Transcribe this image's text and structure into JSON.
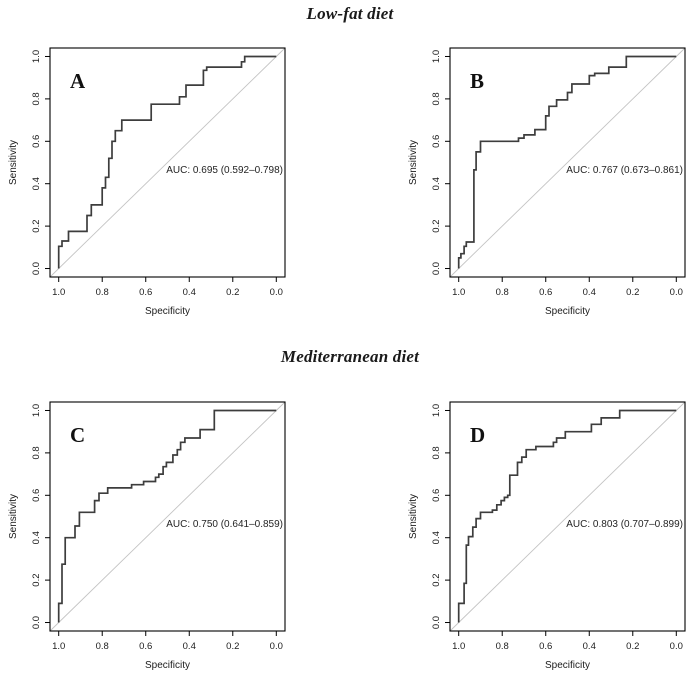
{
  "figure": {
    "sections": [
      {
        "title": "Low-fat diet",
        "panels": [
          "A",
          "B"
        ]
      },
      {
        "title": "Mediterranean diet",
        "panels": [
          "C",
          "D"
        ]
      }
    ],
    "colors": {
      "curve": "#3d3d3d",
      "diagonal": "#c4c4c4",
      "axis": "#000000",
      "text": "#1c1c1c"
    }
  },
  "chart_data": [
    {
      "type": "line",
      "panel": "A",
      "section_title": "Low-fat diet",
      "xlabel": "Specificity",
      "ylabel": "Sensitivity",
      "x_ticks": [
        1.0,
        0.8,
        0.6,
        0.4,
        0.2,
        0.0
      ],
      "y_ticks": [
        0.0,
        0.2,
        0.4,
        0.6,
        0.8,
        1.0
      ],
      "x_axis_reversed": true,
      "xlim": [
        1.0,
        0.0
      ],
      "ylim": [
        0.0,
        1.0
      ],
      "auc": 0.695,
      "auc_ci": [
        0.592,
        0.798
      ],
      "auc_label": "AUC: 0.695 (0.592–0.798)",
      "diagonal_reference": true,
      "roc_points": [
        [
          1.0,
          0.0
        ],
        [
          1.0,
          0.105
        ],
        [
          0.985,
          0.105
        ],
        [
          0.985,
          0.13
        ],
        [
          0.955,
          0.13
        ],
        [
          0.955,
          0.175
        ],
        [
          0.87,
          0.175
        ],
        [
          0.87,
          0.25
        ],
        [
          0.85,
          0.25
        ],
        [
          0.85,
          0.3
        ],
        [
          0.8,
          0.3
        ],
        [
          0.8,
          0.38
        ],
        [
          0.785,
          0.38
        ],
        [
          0.785,
          0.43
        ],
        [
          0.77,
          0.43
        ],
        [
          0.77,
          0.52
        ],
        [
          0.755,
          0.52
        ],
        [
          0.755,
          0.6
        ],
        [
          0.74,
          0.6
        ],
        [
          0.74,
          0.65
        ],
        [
          0.71,
          0.65
        ],
        [
          0.71,
          0.7
        ],
        [
          0.575,
          0.7
        ],
        [
          0.575,
          0.775
        ],
        [
          0.445,
          0.775
        ],
        [
          0.445,
          0.81
        ],
        [
          0.415,
          0.81
        ],
        [
          0.415,
          0.865
        ],
        [
          0.335,
          0.865
        ],
        [
          0.335,
          0.935
        ],
        [
          0.32,
          0.935
        ],
        [
          0.32,
          0.95
        ],
        [
          0.16,
          0.95
        ],
        [
          0.16,
          0.975
        ],
        [
          0.145,
          0.975
        ],
        [
          0.145,
          1.0
        ],
        [
          0.0,
          1.0
        ]
      ]
    },
    {
      "type": "line",
      "panel": "B",
      "section_title": "Low-fat diet",
      "xlabel": "Specificity",
      "ylabel": "Sensitivity",
      "x_ticks": [
        1.0,
        0.8,
        0.6,
        0.4,
        0.2,
        0.0
      ],
      "y_ticks": [
        0.0,
        0.2,
        0.4,
        0.6,
        0.8,
        1.0
      ],
      "x_axis_reversed": true,
      "xlim": [
        1.0,
        0.0
      ],
      "ylim": [
        0.0,
        1.0
      ],
      "auc": 0.767,
      "auc_ci": [
        0.673,
        0.861
      ],
      "auc_label": "AUC: 0.767 (0.673–0.861)",
      "diagonal_reference": true,
      "roc_points": [
        [
          1.0,
          0.0
        ],
        [
          1.0,
          0.05
        ],
        [
          0.99,
          0.05
        ],
        [
          0.99,
          0.07
        ],
        [
          0.975,
          0.07
        ],
        [
          0.975,
          0.105
        ],
        [
          0.965,
          0.105
        ],
        [
          0.965,
          0.125
        ],
        [
          0.93,
          0.125
        ],
        [
          0.93,
          0.465
        ],
        [
          0.92,
          0.465
        ],
        [
          0.92,
          0.55
        ],
        [
          0.9,
          0.55
        ],
        [
          0.9,
          0.6
        ],
        [
          0.725,
          0.6
        ],
        [
          0.725,
          0.615
        ],
        [
          0.7,
          0.615
        ],
        [
          0.7,
          0.63
        ],
        [
          0.65,
          0.63
        ],
        [
          0.65,
          0.655
        ],
        [
          0.6,
          0.655
        ],
        [
          0.6,
          0.72
        ],
        [
          0.585,
          0.72
        ],
        [
          0.585,
          0.765
        ],
        [
          0.55,
          0.765
        ],
        [
          0.55,
          0.795
        ],
        [
          0.5,
          0.795
        ],
        [
          0.5,
          0.83
        ],
        [
          0.48,
          0.83
        ],
        [
          0.48,
          0.87
        ],
        [
          0.4,
          0.87
        ],
        [
          0.4,
          0.91
        ],
        [
          0.375,
          0.91
        ],
        [
          0.375,
          0.92
        ],
        [
          0.31,
          0.92
        ],
        [
          0.31,
          0.95
        ],
        [
          0.23,
          0.95
        ],
        [
          0.23,
          1.0
        ],
        [
          0.0,
          1.0
        ]
      ]
    },
    {
      "type": "line",
      "panel": "C",
      "section_title": "Mediterranean diet",
      "xlabel": "Specificity",
      "ylabel": "Sensitivity",
      "x_ticks": [
        1.0,
        0.8,
        0.6,
        0.4,
        0.2,
        0.0
      ],
      "y_ticks": [
        0.0,
        0.2,
        0.4,
        0.6,
        0.8,
        1.0
      ],
      "x_axis_reversed": true,
      "xlim": [
        1.0,
        0.0
      ],
      "ylim": [
        0.0,
        1.0
      ],
      "auc": 0.75,
      "auc_ci": [
        0.641,
        0.859
      ],
      "auc_label": "AUC: 0.750 (0.641–0.859)",
      "diagonal_reference": true,
      "roc_points": [
        [
          1.0,
          0.0
        ],
        [
          1.0,
          0.09
        ],
        [
          0.985,
          0.09
        ],
        [
          0.985,
          0.275
        ],
        [
          0.97,
          0.275
        ],
        [
          0.97,
          0.4
        ],
        [
          0.925,
          0.4
        ],
        [
          0.925,
          0.455
        ],
        [
          0.905,
          0.455
        ],
        [
          0.905,
          0.52
        ],
        [
          0.835,
          0.52
        ],
        [
          0.835,
          0.575
        ],
        [
          0.815,
          0.575
        ],
        [
          0.815,
          0.61
        ],
        [
          0.775,
          0.61
        ],
        [
          0.775,
          0.635
        ],
        [
          0.665,
          0.635
        ],
        [
          0.665,
          0.65
        ],
        [
          0.61,
          0.65
        ],
        [
          0.61,
          0.665
        ],
        [
          0.555,
          0.665
        ],
        [
          0.555,
          0.685
        ],
        [
          0.54,
          0.685
        ],
        [
          0.54,
          0.7
        ],
        [
          0.52,
          0.7
        ],
        [
          0.52,
          0.735
        ],
        [
          0.505,
          0.735
        ],
        [
          0.505,
          0.755
        ],
        [
          0.475,
          0.755
        ],
        [
          0.475,
          0.79
        ],
        [
          0.455,
          0.79
        ],
        [
          0.455,
          0.815
        ],
        [
          0.44,
          0.815
        ],
        [
          0.44,
          0.85
        ],
        [
          0.42,
          0.85
        ],
        [
          0.42,
          0.87
        ],
        [
          0.35,
          0.87
        ],
        [
          0.35,
          0.91
        ],
        [
          0.285,
          0.91
        ],
        [
          0.285,
          1.0
        ],
        [
          0.0,
          1.0
        ]
      ]
    },
    {
      "type": "line",
      "panel": "D",
      "section_title": "Mediterranean diet",
      "xlabel": "Specificity",
      "ylabel": "Sensitivity",
      "x_ticks": [
        1.0,
        0.8,
        0.6,
        0.4,
        0.2,
        0.0
      ],
      "y_ticks": [
        0.0,
        0.2,
        0.4,
        0.6,
        0.8,
        1.0
      ],
      "x_axis_reversed": true,
      "xlim": [
        1.0,
        0.0
      ],
      "ylim": [
        0.0,
        1.0
      ],
      "auc": 0.803,
      "auc_ci": [
        0.707,
        0.899
      ],
      "auc_label": "AUC: 0.803 (0.707–0.899)",
      "diagonal_reference": true,
      "roc_points": [
        [
          1.0,
          0.0
        ],
        [
          1.0,
          0.09
        ],
        [
          0.975,
          0.09
        ],
        [
          0.975,
          0.185
        ],
        [
          0.965,
          0.185
        ],
        [
          0.965,
          0.365
        ],
        [
          0.955,
          0.365
        ],
        [
          0.955,
          0.405
        ],
        [
          0.935,
          0.405
        ],
        [
          0.935,
          0.45
        ],
        [
          0.92,
          0.45
        ],
        [
          0.92,
          0.49
        ],
        [
          0.9,
          0.49
        ],
        [
          0.9,
          0.52
        ],
        [
          0.845,
          0.52
        ],
        [
          0.845,
          0.53
        ],
        [
          0.825,
          0.53
        ],
        [
          0.825,
          0.555
        ],
        [
          0.805,
          0.555
        ],
        [
          0.805,
          0.575
        ],
        [
          0.79,
          0.575
        ],
        [
          0.79,
          0.59
        ],
        [
          0.775,
          0.59
        ],
        [
          0.775,
          0.6
        ],
        [
          0.765,
          0.6
        ],
        [
          0.765,
          0.695
        ],
        [
          0.73,
          0.695
        ],
        [
          0.73,
          0.755
        ],
        [
          0.71,
          0.755
        ],
        [
          0.71,
          0.78
        ],
        [
          0.69,
          0.78
        ],
        [
          0.69,
          0.815
        ],
        [
          0.645,
          0.815
        ],
        [
          0.645,
          0.83
        ],
        [
          0.565,
          0.83
        ],
        [
          0.565,
          0.85
        ],
        [
          0.55,
          0.85
        ],
        [
          0.55,
          0.87
        ],
        [
          0.51,
          0.87
        ],
        [
          0.51,
          0.9
        ],
        [
          0.39,
          0.9
        ],
        [
          0.39,
          0.935
        ],
        [
          0.345,
          0.935
        ],
        [
          0.345,
          0.965
        ],
        [
          0.26,
          0.965
        ],
        [
          0.26,
          1.0
        ],
        [
          0.0,
          1.0
        ]
      ]
    }
  ]
}
